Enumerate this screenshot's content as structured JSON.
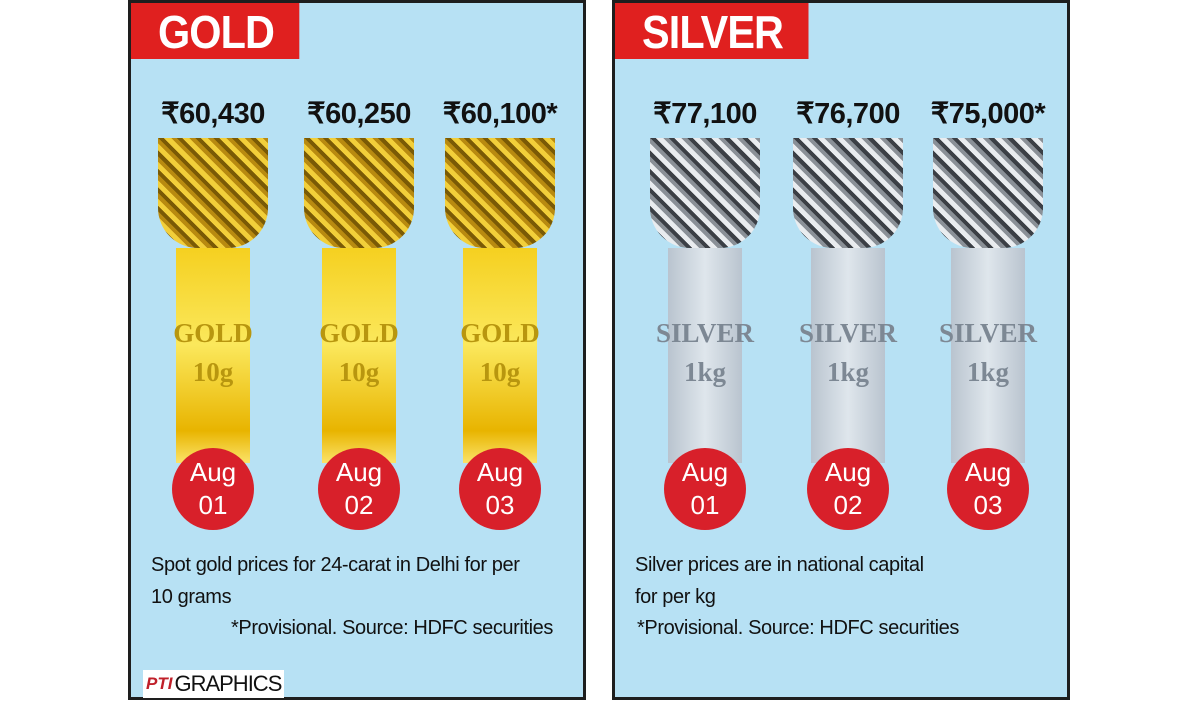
{
  "panels": [
    {
      "title": "GOLD",
      "items": [
        {
          "price": "₹60,430",
          "label": "GOLD",
          "weight": "10g",
          "month": "Aug",
          "day": "01"
        },
        {
          "price": "₹60,250",
          "label": "GOLD",
          "weight": "10g",
          "month": "Aug",
          "day": "02"
        },
        {
          "price": "₹60,100*",
          "label": "GOLD",
          "weight": "10g",
          "month": "Aug",
          "day": "03"
        }
      ],
      "note": [
        "Spot gold prices for 24-carat in Delhi for per",
        "10 grams"
      ],
      "footnote": "*Provisional.  Source: HDFC securities"
    },
    {
      "title": "SILVER",
      "items": [
        {
          "price": "₹77,100",
          "label": "SILVER",
          "weight": "1kg",
          "month": "Aug",
          "day": "01"
        },
        {
          "price": "₹76,700",
          "label": "SILVER",
          "weight": "1kg",
          "month": "Aug",
          "day": "02"
        },
        {
          "price": "₹75,000*",
          "label": "SILVER",
          "weight": "1kg",
          "month": "Aug",
          "day": "03"
        }
      ],
      "note": [
        "Silver prices are in national capital",
        "for per kg"
      ],
      "footnote": "*Provisional.  Source: HDFC securities"
    }
  ],
  "credit": {
    "logo": "PTI",
    "text": "GRAPHICS"
  }
}
